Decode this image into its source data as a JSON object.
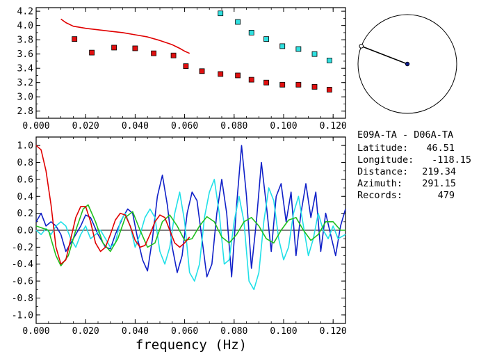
{
  "colors": {
    "red": "#e00000",
    "dark_blue": "#1020c8",
    "cyan": "#20e0e8",
    "green": "#20c020",
    "marker_red": "#e01010",
    "marker_cyan": "#30e0e0",
    "axis": "#000000"
  },
  "info": {
    "station_pair": "E09A-TA - D06A-TA",
    "rows": [
      {
        "label": "Latitude:",
        "value": "46.51"
      },
      {
        "label": "Longitude:",
        "value": "-118.15"
      },
      {
        "label": "Distance:",
        "value": "219.34"
      },
      {
        "label": "Azimuth:",
        "value": "291.15"
      },
      {
        "label": "Records:",
        "value": "479"
      }
    ]
  },
  "chart_data": [
    {
      "type": "scatter",
      "title": "",
      "xlabel": "",
      "ylabel": "",
      "xlim": [
        0.0,
        0.125
      ],
      "ylim": [
        2.7,
        4.25
      ],
      "x_ticks": [
        "0.000",
        "0.020",
        "0.040",
        "0.060",
        "0.080",
        "0.100",
        "0.120"
      ],
      "y_ticks": [
        "2.8",
        "3.0",
        "3.2",
        "3.4",
        "3.6",
        "3.8",
        "4.0",
        "4.2"
      ],
      "series": [
        {
          "style": "line",
          "color": "red",
          "x": [
            0.01,
            0.012,
            0.015,
            0.02,
            0.025,
            0.03,
            0.035,
            0.04,
            0.045,
            0.05,
            0.055,
            0.058,
            0.06,
            0.062
          ],
          "y": [
            4.09,
            4.04,
            3.99,
            3.96,
            3.94,
            3.92,
            3.9,
            3.87,
            3.84,
            3.79,
            3.73,
            3.68,
            3.64,
            3.61
          ]
        },
        {
          "style": "squares",
          "color": "marker_red",
          "x": [
            0.0155,
            0.0225,
            0.0315,
            0.04,
            0.0475,
            0.0555,
            0.0605,
            0.067,
            0.0745,
            0.0815,
            0.087,
            0.093,
            0.0995,
            0.106,
            0.1125,
            0.1185
          ],
          "y": [
            3.81,
            3.62,
            3.69,
            3.68,
            3.61,
            3.58,
            3.43,
            3.36,
            3.32,
            3.3,
            3.24,
            3.2,
            3.17,
            3.17,
            3.14,
            3.1
          ]
        },
        {
          "style": "squares",
          "color": "marker_cyan",
          "x": [
            0.0745,
            0.0815,
            0.087,
            0.093,
            0.0995,
            0.106,
            0.1125,
            0.1185
          ],
          "y": [
            4.17,
            4.05,
            3.9,
            3.81,
            3.71,
            3.67,
            3.6,
            3.51
          ]
        }
      ]
    },
    {
      "type": "line",
      "title": "",
      "xlabel": "frequency (Hz)",
      "ylabel": "",
      "xlim": [
        0.0,
        0.125
      ],
      "ylim": [
        -1.1,
        1.1
      ],
      "x_ticks": [
        "0.000",
        "0.020",
        "0.040",
        "0.060",
        "0.080",
        "0.100",
        "0.120"
      ],
      "y_ticks": [
        "1.0",
        "0.8",
        "0.6",
        "0.4",
        "0.2",
        "0.0",
        "-0.2",
        "-0.4",
        "-0.6",
        "-0.8",
        "-1.0"
      ],
      "zero_line": true,
      "series": [
        {
          "color": "dark_blue",
          "x": [
            0.0,
            0.002,
            0.004,
            0.006,
            0.008,
            0.01,
            0.012,
            0.015,
            0.018,
            0.02,
            0.022,
            0.025,
            0.028,
            0.03,
            0.032,
            0.035,
            0.037,
            0.039,
            0.041,
            0.043,
            0.045,
            0.047,
            0.049,
            0.051,
            0.053,
            0.055,
            0.057,
            0.059,
            0.061,
            0.063,
            0.065,
            0.067,
            0.069,
            0.071,
            0.073,
            0.075,
            0.077,
            0.079,
            0.081,
            0.083,
            0.085,
            0.087,
            0.089,
            0.091,
            0.093,
            0.095,
            0.097,
            0.099,
            0.101,
            0.103,
            0.105,
            0.107,
            0.109,
            0.111,
            0.113,
            0.115,
            0.117,
            0.119,
            0.121,
            0.123,
            0.125
          ],
          "y": [
            0.1,
            0.2,
            0.05,
            0.1,
            0.05,
            -0.05,
            -0.25,
            -0.1,
            0.05,
            0.18,
            0.15,
            -0.05,
            -0.2,
            -0.22,
            -0.05,
            0.15,
            0.25,
            0.2,
            -0.1,
            -0.35,
            -0.48,
            -0.1,
            0.4,
            0.65,
            0.3,
            -0.2,
            -0.5,
            -0.3,
            0.2,
            0.45,
            0.35,
            -0.1,
            -0.55,
            -0.4,
            0.2,
            0.6,
            0.2,
            -0.55,
            0.3,
            1.0,
            0.4,
            -0.45,
            0.1,
            0.8,
            0.3,
            -0.25,
            0.4,
            0.55,
            0.1,
            0.45,
            -0.3,
            0.2,
            0.55,
            0.15,
            0.45,
            -0.25,
            0.2,
            -0.05,
            -0.3,
            0.05,
            0.25
          ]
        },
        {
          "color": "cyan",
          "x": [
            0.0,
            0.002,
            0.004,
            0.006,
            0.008,
            0.01,
            0.012,
            0.014,
            0.016,
            0.018,
            0.02,
            0.022,
            0.024,
            0.026,
            0.028,
            0.03,
            0.032,
            0.034,
            0.036,
            0.038,
            0.04,
            0.042,
            0.044,
            0.046,
            0.048,
            0.05,
            0.052,
            0.054,
            0.056,
            0.058,
            0.06,
            0.062,
            0.064,
            0.066,
            0.068,
            0.07,
            0.072,
            0.074,
            0.076,
            0.078,
            0.08,
            0.082,
            0.084,
            0.086,
            0.088,
            0.09,
            0.092,
            0.094,
            0.096,
            0.098,
            0.1,
            0.102,
            0.104,
            0.106,
            0.108,
            0.11,
            0.112,
            0.114,
            0.116,
            0.118,
            0.12,
            0.122,
            0.125
          ],
          "y": [
            0.0,
            -0.05,
            0.02,
            -0.05,
            0.05,
            0.1,
            0.05,
            -0.1,
            -0.2,
            -0.05,
            0.05,
            -0.1,
            -0.05,
            0.0,
            -0.1,
            -0.2,
            -0.15,
            0.1,
            0.2,
            0.05,
            -0.2,
            -0.05,
            0.15,
            0.25,
            0.15,
            -0.25,
            -0.4,
            -0.2,
            0.2,
            0.45,
            0.1,
            -0.5,
            -0.6,
            -0.4,
            0.15,
            0.45,
            0.6,
            0.2,
            -0.4,
            -0.35,
            0.1,
            0.4,
            0.1,
            -0.6,
            -0.7,
            -0.5,
            0.1,
            0.5,
            0.35,
            -0.1,
            -0.35,
            -0.2,
            0.2,
            0.4,
            0.05,
            -0.3,
            -0.1,
            0.2,
            0.0,
            -0.1,
            0.05,
            -0.1,
            -0.05
          ]
        },
        {
          "color": "green",
          "x": [
            0.0,
            0.005,
            0.008,
            0.01,
            0.013,
            0.016,
            0.019,
            0.021,
            0.024,
            0.027,
            0.03,
            0.033,
            0.036,
            0.039,
            0.042,
            0.045,
            0.048,
            0.051,
            0.054,
            0.057,
            0.06,
            0.063,
            0.066,
            0.069,
            0.072,
            0.075,
            0.078,
            0.081,
            0.084,
            0.087,
            0.09,
            0.093,
            0.096,
            0.099,
            0.102,
            0.105,
            0.108,
            0.111,
            0.114,
            0.117,
            0.12,
            0.123,
            0.125
          ],
          "y": [
            0.05,
            0.0,
            -0.3,
            -0.42,
            -0.3,
            0.0,
            0.25,
            0.3,
            0.1,
            -0.15,
            -0.25,
            -0.1,
            0.15,
            0.22,
            0.0,
            -0.2,
            -0.15,
            0.1,
            0.18,
            0.05,
            -0.12,
            -0.1,
            0.05,
            0.16,
            0.1,
            -0.08,
            -0.15,
            -0.05,
            0.1,
            0.15,
            0.05,
            -0.1,
            -0.15,
            0.0,
            0.12,
            0.15,
            0.0,
            -0.12,
            -0.05,
            0.1,
            0.1,
            0.0,
            0.0
          ]
        },
        {
          "color": "red",
          "x": [
            0.0,
            0.002,
            0.004,
            0.006,
            0.008,
            0.01,
            0.012,
            0.014,
            0.016,
            0.018,
            0.02,
            0.022,
            0.024,
            0.026,
            0.028,
            0.03,
            0.032,
            0.034,
            0.036,
            0.038,
            0.04,
            0.042,
            0.044,
            0.046,
            0.048,
            0.05,
            0.052,
            0.054,
            0.056,
            0.058,
            0.06,
            0.062
          ],
          "y": [
            1.0,
            0.95,
            0.7,
            0.3,
            -0.2,
            -0.4,
            -0.35,
            -0.1,
            0.15,
            0.28,
            0.28,
            0.1,
            -0.15,
            -0.25,
            -0.2,
            -0.05,
            0.12,
            0.2,
            0.18,
            0.05,
            -0.12,
            -0.2,
            -0.18,
            -0.05,
            0.1,
            0.18,
            0.15,
            0.0,
            -0.15,
            -0.2,
            -0.15,
            -0.08
          ]
        }
      ]
    }
  ],
  "polar": {
    "azimuth_deg": 291.15,
    "circle": true
  }
}
